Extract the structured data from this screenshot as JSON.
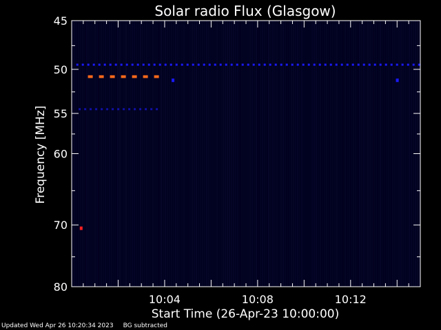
{
  "chart_data": {
    "type": "heatmap",
    "title": "Solar radio Flux (Glasgow)",
    "xlabel": "Start Time (26-Apr-23 10:00:00)",
    "ylabel": "Frequency [MHz]",
    "x_unit": "minutes",
    "xlim": [
      0,
      15
    ],
    "ylim": [
      45,
      80
    ],
    "y_scale": "log",
    "x_ticks": [
      {
        "value": 4,
        "label": "10:04"
      },
      {
        "value": 8,
        "label": "10:08"
      },
      {
        "value": 12,
        "label": "10:12"
      }
    ],
    "y_ticks": [
      {
        "value": 45,
        "label": "45"
      },
      {
        "value": 50,
        "label": "50"
      },
      {
        "value": 55,
        "label": "55"
      },
      {
        "value": 60,
        "label": "60"
      },
      {
        "value": 70,
        "label": "70"
      },
      {
        "value": 80,
        "label": "80"
      }
    ],
    "colors": {
      "background": "#000000",
      "plot_bg": "#00001e",
      "axis": "#ffffff",
      "band_blue": "#1a1aff",
      "band_orange": "#ff6a1a",
      "spot_red": "#ff2020"
    },
    "features": [
      {
        "name": "narrow-band-blue",
        "freq": 49.5,
        "t_start": 0.2,
        "t_end": 15,
        "color": "band_blue",
        "dashed": true
      },
      {
        "name": "narrow-band-orange",
        "freq": 50.8,
        "t_start": 0.7,
        "t_end": 3.7,
        "color": "band_orange",
        "dashed": true
      },
      {
        "name": "narrow-band-dim",
        "freq": 54.5,
        "t_start": 0.3,
        "t_end": 3.7,
        "color": "band_blue",
        "dashed": true
      },
      {
        "name": "spot-a",
        "freq": 51.2,
        "t_start": 4.3,
        "t_end": 4.35,
        "color": "band_blue",
        "dashed": false
      },
      {
        "name": "spot-b",
        "freq": 51.2,
        "t_start": 13.95,
        "t_end": 14.0,
        "color": "band_blue",
        "dashed": false
      },
      {
        "name": "spot-c",
        "freq": 70.5,
        "t_start": 0.35,
        "t_end": 0.4,
        "color": "spot_red",
        "dashed": false
      }
    ]
  },
  "footer": {
    "updated": "Updated Wed Apr 26 10:20:34 2023",
    "note": "BG subtracted"
  }
}
